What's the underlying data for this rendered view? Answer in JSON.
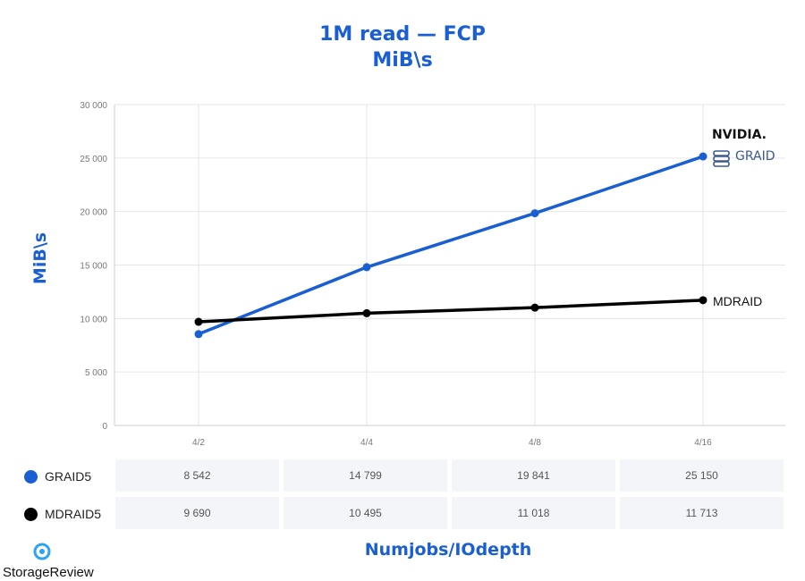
{
  "chart_data": {
    "type": "line",
    "title": "1M read — FCP",
    "subtitle": "MiB\\s",
    "xlabel": "Numjobs/IOdepth",
    "ylabel": "MiB\\s",
    "categories": [
      "4/2",
      "4/4",
      "4/8",
      "4/16"
    ],
    "ylim": [
      0,
      30000
    ],
    "yticks": [
      0,
      5000,
      10000,
      15000,
      20000,
      25000,
      30000
    ],
    "ytick_labels": [
      "0",
      "5 000",
      "10 000",
      "15 000",
      "20 000",
      "25 000",
      "30 000"
    ],
    "grid": true,
    "series": [
      {
        "name": "GRAID5",
        "color": "#1a5fd1",
        "values": [
          8542,
          14799,
          19841,
          25150
        ],
        "labels": [
          "8 542",
          "14 799",
          "19 841",
          "25 150"
        ]
      },
      {
        "name": "MDRAID5",
        "color": "#000000",
        "values": [
          9690,
          10495,
          11018,
          11713
        ],
        "labels": [
          "9 690",
          "10 495",
          "11 018",
          "11 713"
        ]
      }
    ],
    "annotations": {
      "graid_logo_top": "NVIDIA.",
      "graid_logo_bottom": "GRAID",
      "mdraid": "MDRAID"
    }
  },
  "branding": {
    "site": "StorageReview"
  }
}
